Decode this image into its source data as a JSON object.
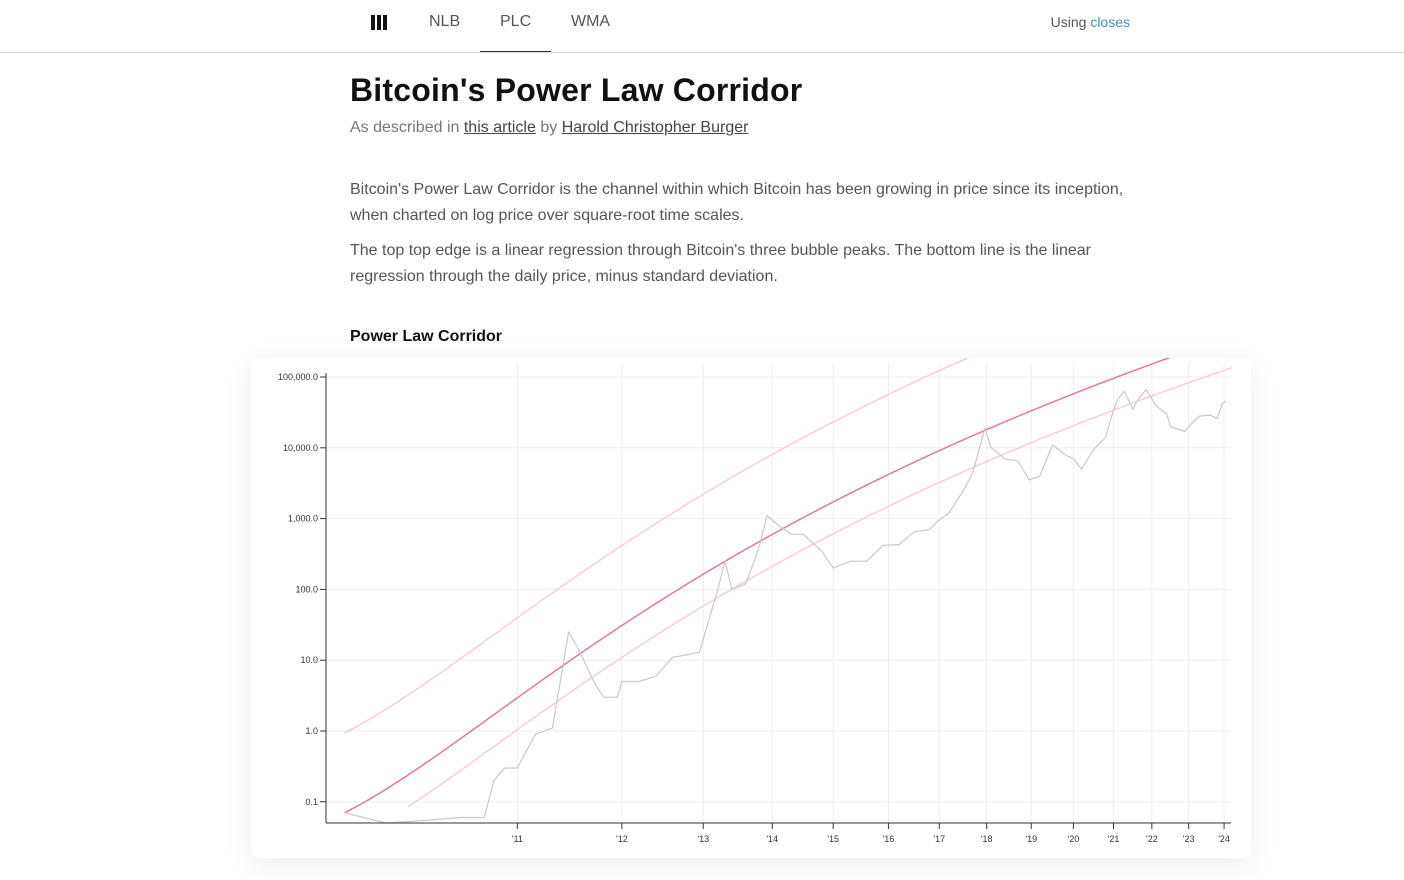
{
  "nav": {
    "tabs": [
      {
        "label": "NLB"
      },
      {
        "label": "PLC",
        "active": true
      },
      {
        "label": "WMA"
      }
    ],
    "using_prefix": "Using",
    "using_link": "closes",
    "logo_icon": "bars-icon"
  },
  "page": {
    "title": "Bitcoin's Power Law Corridor",
    "subtitle_prefix": "As described in",
    "subtitle_link1": "this article",
    "subtitle_mid": "by",
    "subtitle_link2": "Harold Christopher Burger",
    "paragraph1": "Bitcoin's Power Law Corridor is the channel within which Bitcoin has been growing in price since its inception, when charted on log price over square-root time scales.",
    "paragraph2": "The top top edge is a linear regression through Bitcoin's three bubble peaks. The bottom line is the linear regression through the daily price, minus standard deviation.",
    "chart_title": "Power Law Corridor"
  },
  "colors": {
    "price": "#c8c8c8",
    "regression": "#e0789a",
    "corridor": "#f6cdd9",
    "link": "#3a8fc7"
  },
  "chart_data": {
    "type": "line",
    "title": "Power Law Corridor",
    "xscale": "sqrt-time",
    "yscale": "log",
    "ylim": [
      0.05,
      100000
    ],
    "y_ticks": [
      {
        "value": 100000,
        "label": "100,000.0"
      },
      {
        "value": 10000,
        "label": "10,000.0"
      },
      {
        "value": 1000,
        "label": "1,000.0"
      },
      {
        "value": 100,
        "label": "100.0"
      },
      {
        "value": 10,
        "label": "10.0"
      },
      {
        "value": 1,
        "label": "1.0"
      },
      {
        "value": 0.1,
        "label": "0.1"
      }
    ],
    "x_ticks": [
      {
        "year": 2011,
        "label": "'11"
      },
      {
        "year": 2012,
        "label": "'12"
      },
      {
        "year": 2013,
        "label": "'13"
      },
      {
        "year": 2014,
        "label": "'14"
      },
      {
        "year": 2015,
        "label": "'15"
      },
      {
        "year": 2016,
        "label": "'16"
      },
      {
        "year": 2017,
        "label": "'17"
      },
      {
        "year": 2018,
        "label": "'18"
      },
      {
        "year": 2019,
        "label": "'19"
      },
      {
        "year": 2020,
        "label": "'20"
      },
      {
        "year": 2021,
        "label": "'21"
      },
      {
        "year": 2022,
        "label": "'22"
      },
      {
        "year": 2023,
        "label": "'23"
      },
      {
        "year": 2024,
        "label": "'24"
      }
    ],
    "grid": true,
    "series": [
      {
        "role": "price",
        "points": [
          [
            2010.05,
            0.07
          ],
          [
            2010.2,
            0.05
          ],
          [
            2010.4,
            0.055
          ],
          [
            2010.6,
            0.06
          ],
          [
            2010.75,
            0.06
          ],
          [
            2010.82,
            0.2
          ],
          [
            2010.9,
            0.3
          ],
          [
            2011.0,
            0.3
          ],
          [
            2011.15,
            0.9
          ],
          [
            2011.3,
            1.1
          ],
          [
            2011.45,
            25
          ],
          [
            2011.55,
            14
          ],
          [
            2011.7,
            5
          ],
          [
            2011.8,
            3
          ],
          [
            2011.95,
            3
          ],
          [
            2012.0,
            5
          ],
          [
            2012.2,
            5
          ],
          [
            2012.4,
            6
          ],
          [
            2012.6,
            11
          ],
          [
            2012.8,
            12
          ],
          [
            2012.95,
            13
          ],
          [
            2013.2,
            100
          ],
          [
            2013.3,
            250
          ],
          [
            2013.4,
            100
          ],
          [
            2013.6,
            120
          ],
          [
            2013.8,
            400
          ],
          [
            2013.92,
            1100
          ],
          [
            2014.1,
            800
          ],
          [
            2014.3,
            600
          ],
          [
            2014.5,
            600
          ],
          [
            2014.8,
            350
          ],
          [
            2015.0,
            200
          ],
          [
            2015.3,
            250
          ],
          [
            2015.6,
            250
          ],
          [
            2015.9,
            420
          ],
          [
            2016.2,
            430
          ],
          [
            2016.5,
            650
          ],
          [
            2016.8,
            700
          ],
          [
            2016.95,
            900
          ],
          [
            2017.2,
            1200
          ],
          [
            2017.5,
            2500
          ],
          [
            2017.7,
            4500
          ],
          [
            2017.96,
            19000
          ],
          [
            2018.1,
            10000
          ],
          [
            2018.4,
            7000
          ],
          [
            2018.7,
            6500
          ],
          [
            2018.95,
            3500
          ],
          [
            2019.2,
            4000
          ],
          [
            2019.5,
            11000
          ],
          [
            2019.8,
            8000
          ],
          [
            2020.0,
            7000
          ],
          [
            2020.2,
            5000
          ],
          [
            2020.5,
            9500
          ],
          [
            2020.8,
            14000
          ],
          [
            2020.95,
            28000
          ],
          [
            2021.1,
            48000
          ],
          [
            2021.28,
            63000
          ],
          [
            2021.5,
            35000
          ],
          [
            2021.6,
            45000
          ],
          [
            2021.85,
            67000
          ],
          [
            2022.1,
            40000
          ],
          [
            2022.4,
            30000
          ],
          [
            2022.5,
            20000
          ],
          [
            2022.9,
            17000
          ],
          [
            2023.0,
            20000
          ],
          [
            2023.3,
            28000
          ],
          [
            2023.6,
            29000
          ],
          [
            2023.8,
            26000
          ],
          [
            2023.95,
            42000
          ],
          [
            2024.05,
            46000
          ]
        ]
      },
      {
        "role": "regression",
        "x_range": [
          2010.05,
          2024.25
        ]
      },
      {
        "role": "corridor-upper",
        "x_range": [
          2010.05,
          2024.25
        ]
      },
      {
        "role": "corridor-lower",
        "x_range": [
          2010.3,
          2024.25
        ]
      }
    ]
  }
}
